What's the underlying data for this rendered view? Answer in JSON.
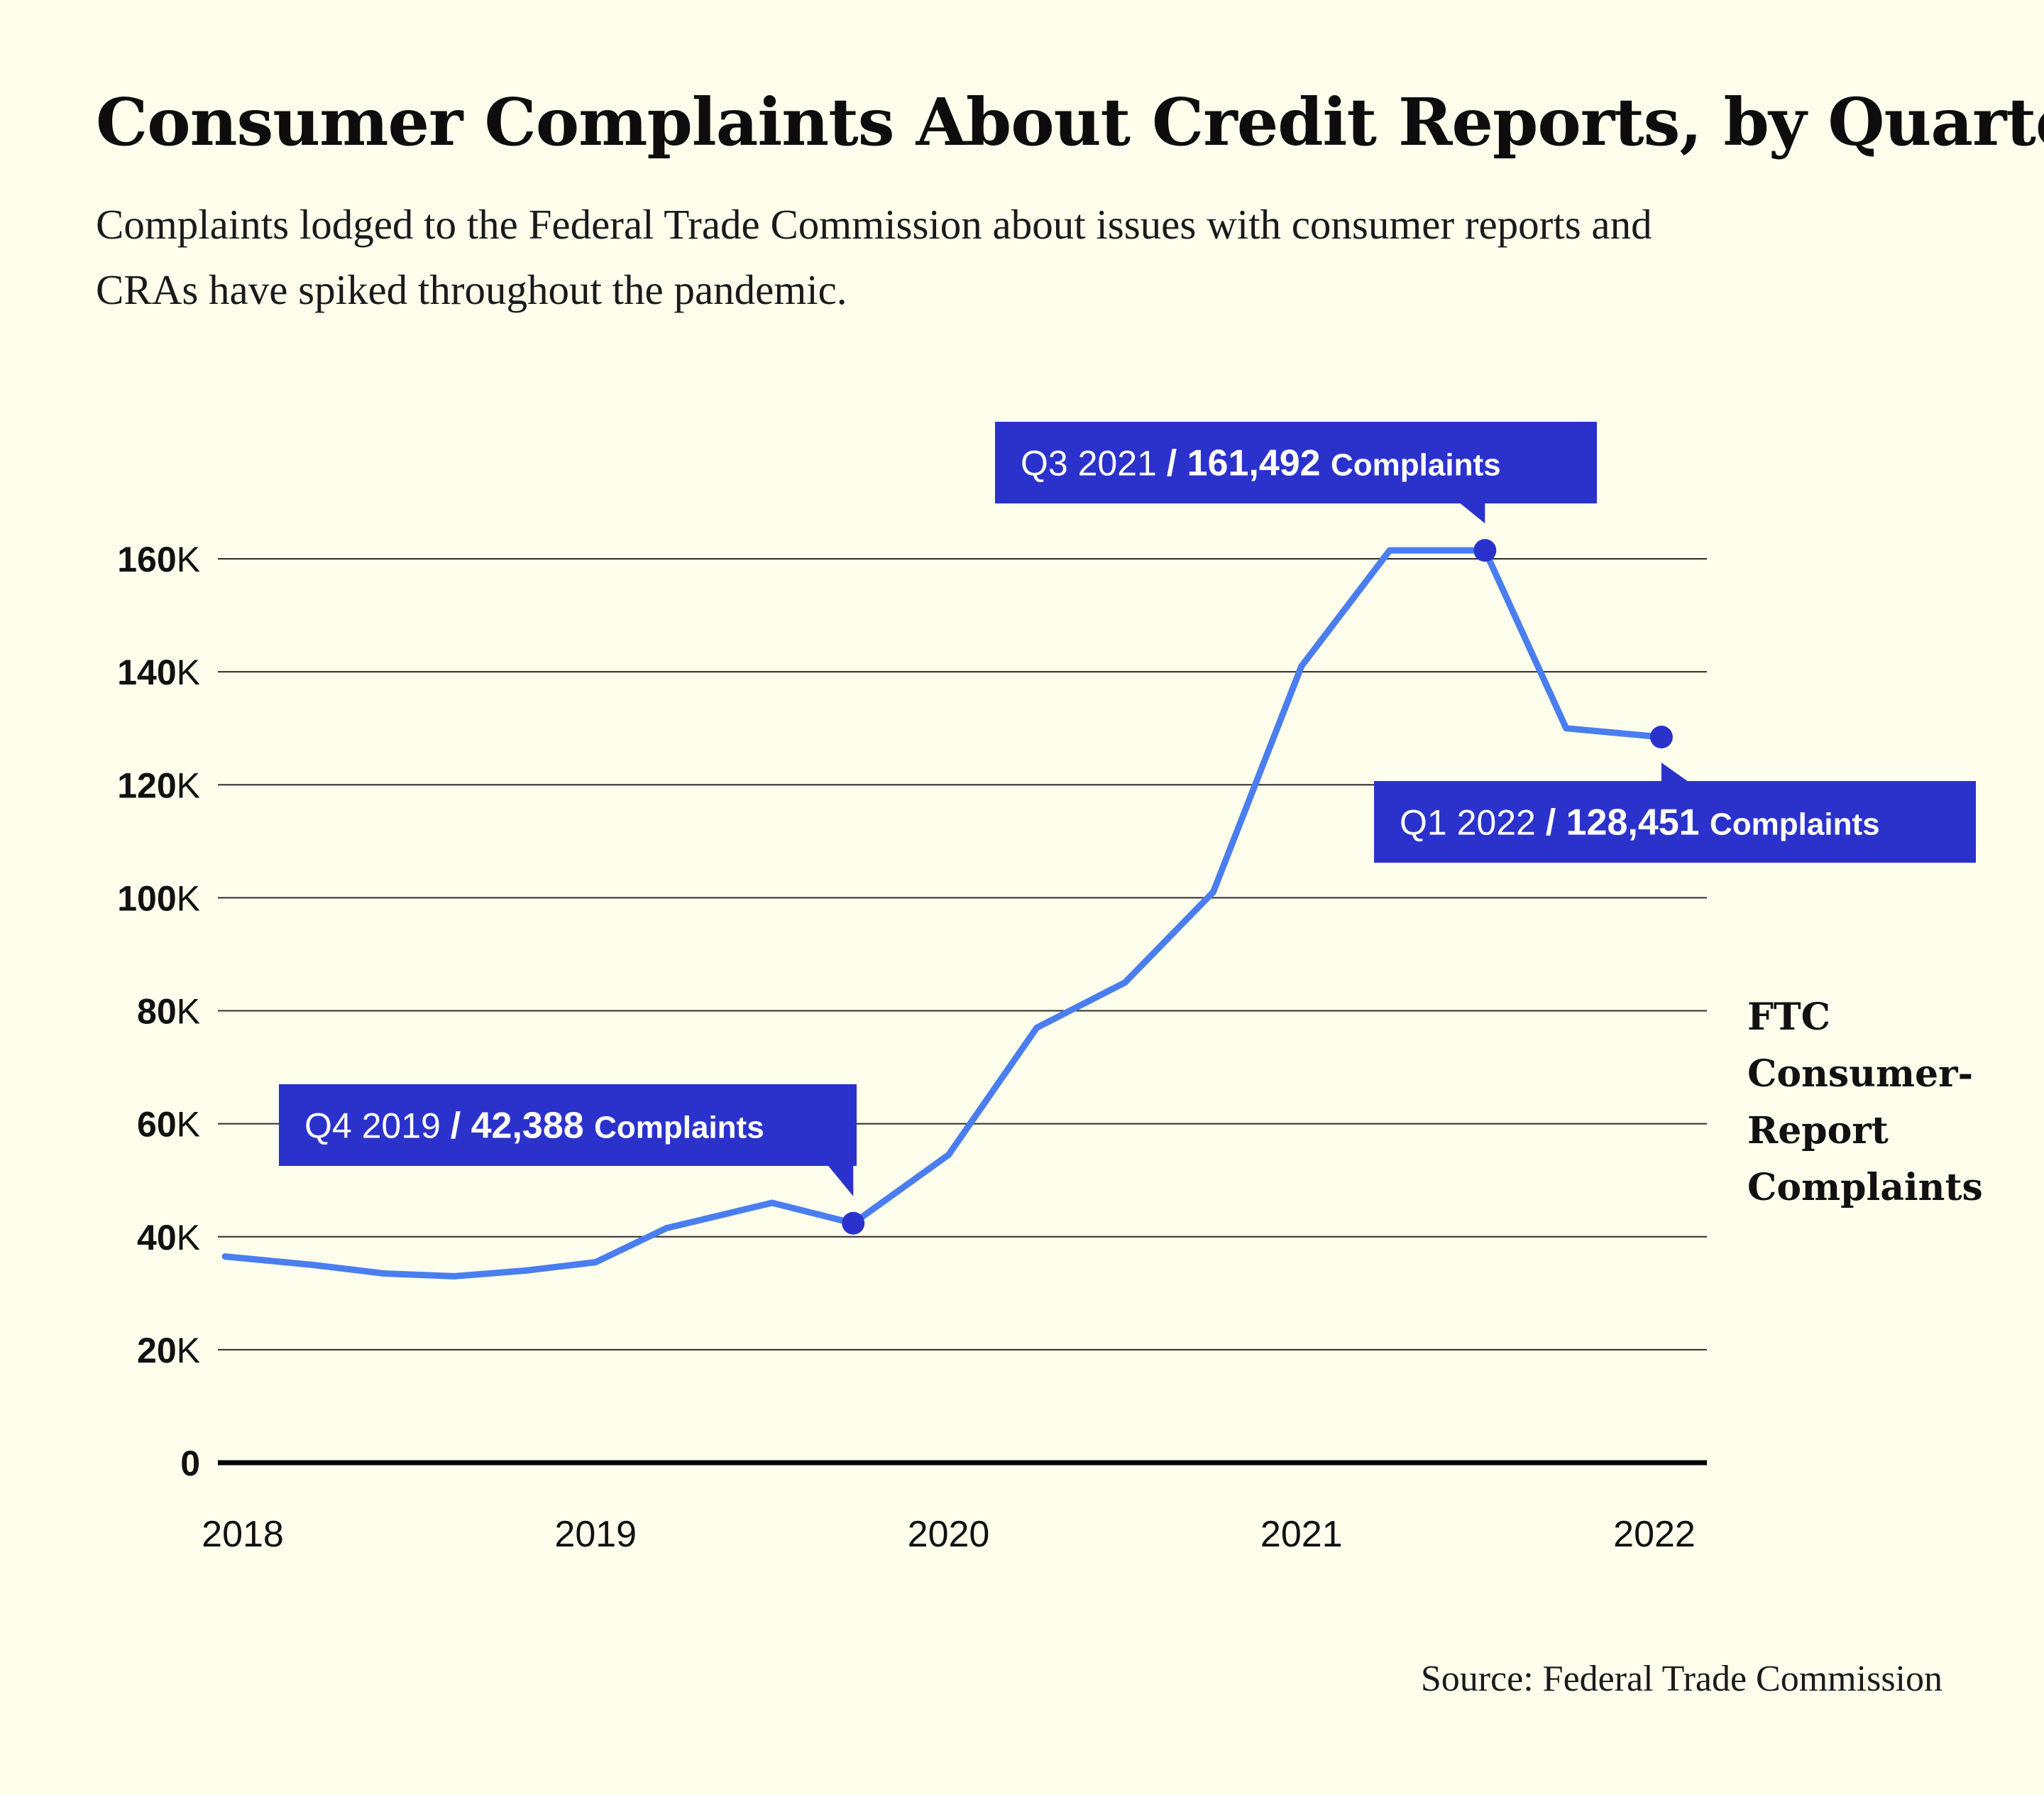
{
  "title": "Consumer Complaints About Credit Reports, by Quarter",
  "subtitle": "Complaints lodged to the Federal Trade Commission about issues with consumer reports and CRAs have spiked throughout the pandemic.",
  "source": "Source: Federal Trade Commission",
  "colors": {
    "background": "#fefeec",
    "line": "#4a7ef0",
    "annotation_fill": "#2b32cc",
    "point": "#2b32cc"
  },
  "chart_data": {
    "type": "line",
    "title": "Consumer Complaints About Credit Reports, by Quarter",
    "xlabel": "",
    "ylabel": "",
    "xlim": [
      2018.0,
      2022.2
    ],
    "ylim": [
      0,
      160000
    ],
    "grid": true,
    "y_ticks": [
      0,
      20000,
      40000,
      60000,
      80000,
      100000,
      120000,
      140000,
      160000
    ],
    "y_tick_labels": [
      "0",
      "20K",
      "40K",
      "60K",
      "80K",
      "100K",
      "120K",
      "140K",
      "160K"
    ],
    "x_ticks": [
      2018,
      2019,
      2020,
      2021,
      2022
    ],
    "x_tick_labels": [
      "2018",
      "2019",
      "2020",
      "2021",
      "2022"
    ],
    "series": [
      {
        "name": "FTC Consumer-Report Complaints",
        "label_lines": [
          "FTC",
          "Consumer-",
          "Report",
          "Complaints"
        ],
        "x": [
          2017.95,
          2018.2,
          2018.4,
          2018.6,
          2018.8,
          2019.0,
          2019.2,
          2019.5,
          2019.73,
          2020.0,
          2020.25,
          2020.5,
          2020.75,
          2021.0,
          2021.25,
          2021.52,
          2021.75,
          2022.02
        ],
        "values": [
          36500,
          35000,
          33500,
          33000,
          34000,
          35500,
          41500,
          46000,
          42388,
          54500,
          77000,
          85000,
          101000,
          141000,
          161492,
          161492,
          130000,
          128451
        ]
      }
    ],
    "annotations": [
      {
        "x": 2019.73,
        "value": 42388,
        "period": "Q4 2019",
        "sep": "/",
        "value_text": "42,388",
        "unit": "Complaints"
      },
      {
        "x": 2021.52,
        "value": 161492,
        "period": "Q3 2021",
        "sep": "/",
        "value_text": "161,492",
        "unit": "Complaints"
      },
      {
        "x": 2022.02,
        "value": 128451,
        "period": "Q1 2022",
        "sep": "/",
        "value_text": "128,451",
        "unit": "Complaints"
      }
    ]
  }
}
